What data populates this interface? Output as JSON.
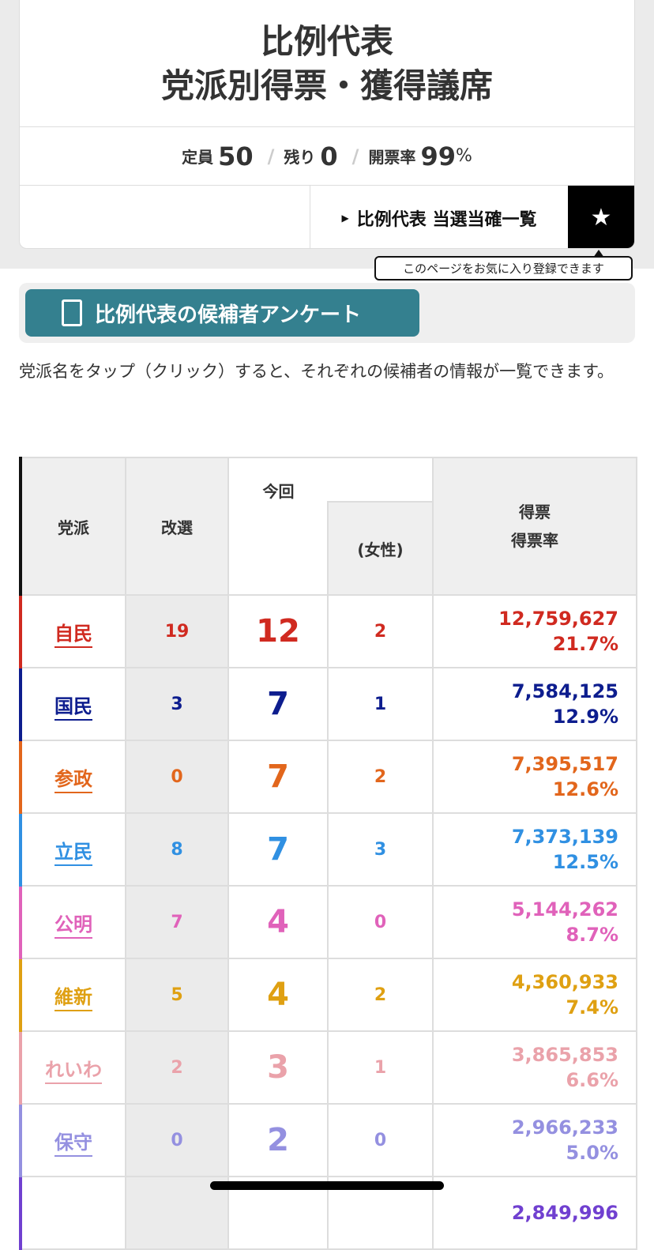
{
  "header": {
    "title_line1": "比例代表",
    "title_line2": "党派別得票・獲得議席"
  },
  "stats": {
    "capacity_label": "定員",
    "capacity": "50",
    "remaining_label": "残り",
    "remaining": "0",
    "rate_label": "開票率",
    "rate": "99",
    "rate_unit": "%"
  },
  "links": {
    "winners_list": "比例代表 当選当確一覧",
    "favorite_tooltip": "このページをお気に入り登録できます"
  },
  "survey_button": "比例代表の候補者アンケート",
  "note": "党派名をタップ（クリック）すると、それぞれの候補者の情報が一覧できます。",
  "table": {
    "headers": {
      "party": "党派",
      "kaisen": "改選",
      "konkai": "今回",
      "female": "(女性)",
      "votes": "得票",
      "rate": "得票率"
    },
    "rows": [
      {
        "party": "自民",
        "kaisen": "19",
        "seats": "12",
        "female": "2",
        "votes": "12,759,627",
        "rate": "21.7%",
        "color": "#d02a20"
      },
      {
        "party": "国民",
        "kaisen": "3",
        "seats": "7",
        "female": "1",
        "votes": "7,584,125",
        "rate": "12.9%",
        "color": "#0d1d8e"
      },
      {
        "party": "参政",
        "kaisen": "0",
        "seats": "7",
        "female": "2",
        "votes": "7,395,517",
        "rate": "12.6%",
        "color": "#e2661c"
      },
      {
        "party": "立民",
        "kaisen": "8",
        "seats": "7",
        "female": "3",
        "votes": "7,373,139",
        "rate": "12.5%",
        "color": "#3090e2"
      },
      {
        "party": "公明",
        "kaisen": "7",
        "seats": "4",
        "female": "0",
        "votes": "5,144,262",
        "rate": "8.7%",
        "color": "#e062ba"
      },
      {
        "party": "維新",
        "kaisen": "5",
        "seats": "4",
        "female": "2",
        "votes": "4,360,933",
        "rate": "7.4%",
        "color": "#dfa012"
      },
      {
        "party": "れいわ",
        "kaisen": "2",
        "seats": "3",
        "female": "1",
        "votes": "3,865,853",
        "rate": "6.6%",
        "color": "#eaa2aa"
      },
      {
        "party": "保守",
        "kaisen": "0",
        "seats": "2",
        "female": "0",
        "votes": "2,966,233",
        "rate": "5.0%",
        "color": "#9490e0"
      },
      {
        "votes": "2,849,996",
        "color": "#7040d0"
      }
    ]
  }
}
